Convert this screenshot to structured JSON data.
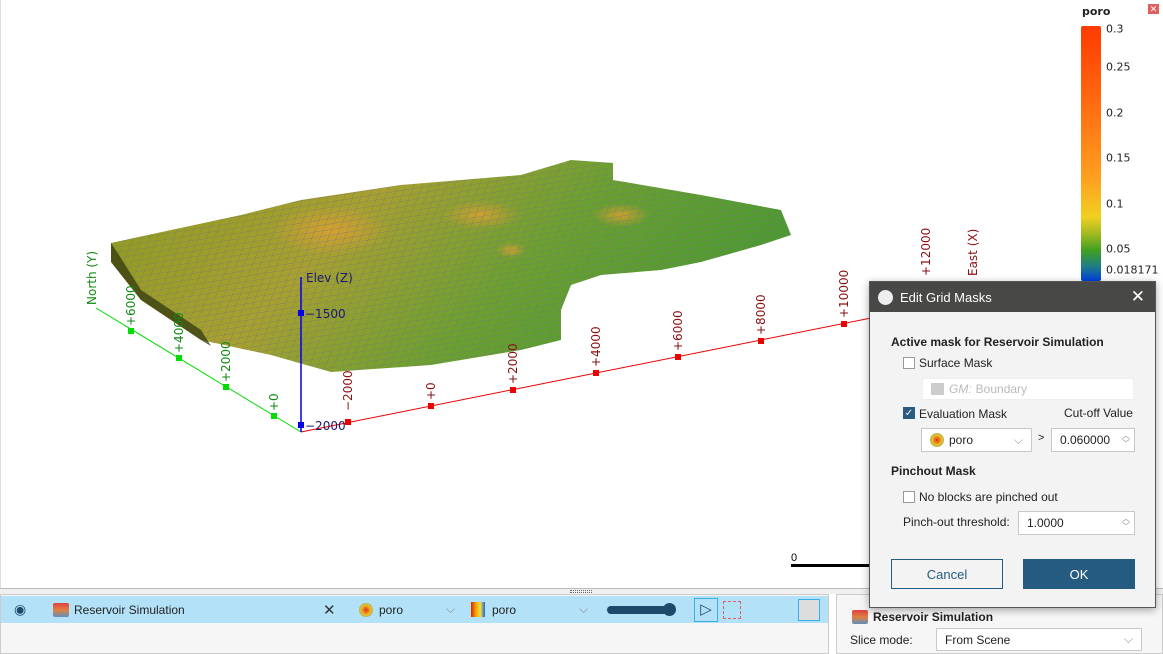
{
  "legend": {
    "title": "poro",
    "ticks": [
      "0.3",
      "0.25",
      "0.2",
      "0.15",
      "0.1",
      "0.05",
      "0.018171"
    ],
    "close_icon": "close-icon"
  },
  "axes": {
    "north": {
      "label": "North (Y)",
      "ticks": [
        "+6000",
        "+4000",
        "+2000",
        "+0"
      ],
      "color": "#00cc00"
    },
    "east": {
      "label": "East (X)",
      "ticks": [
        "−2000",
        "+0",
        "+2000",
        "+4000",
        "+6000",
        "+8000",
        "+10000",
        "+12000"
      ],
      "color": "#ee0000"
    },
    "elev": {
      "label": "Elev (Z)",
      "ticks": [
        "−1500",
        "−2000"
      ],
      "color": "#0000ee"
    }
  },
  "scale_bar": {
    "label": "0"
  },
  "dialog": {
    "title": "Edit Grid Masks",
    "section1": "Active mask for Reservoir Simulation",
    "surface_mask": {
      "label": "Surface Mask",
      "checked": false,
      "value": "GM: Boundary",
      "prefix": "GM:",
      "name": "Boundary"
    },
    "evaluation_mask": {
      "label": "Evaluation Mask",
      "checked": true,
      "attribute": "poro",
      "operator": ">",
      "cutoff_label": "Cut-off Value",
      "cutoff": "0.060000"
    },
    "section2": "Pinchout Mask",
    "no_pinch": {
      "label": "No blocks are pinched out",
      "checked": false
    },
    "pinch_threshold": {
      "label": "Pinch-out threshold:",
      "value": "1.0000"
    },
    "cancel": "Cancel",
    "ok": "OK"
  },
  "object_row": {
    "name": "Reservoir Simulation",
    "attribute": "poro",
    "colormap": "poro",
    "opacity": 1.0
  },
  "properties": {
    "title": "Reservoir Simulation",
    "slice_mode_label": "Slice mode:",
    "slice_mode": "From Scene"
  },
  "colors": {
    "accent": "#255b80",
    "row_highlight": "#b3e2f8",
    "titlebar": "#484846"
  }
}
